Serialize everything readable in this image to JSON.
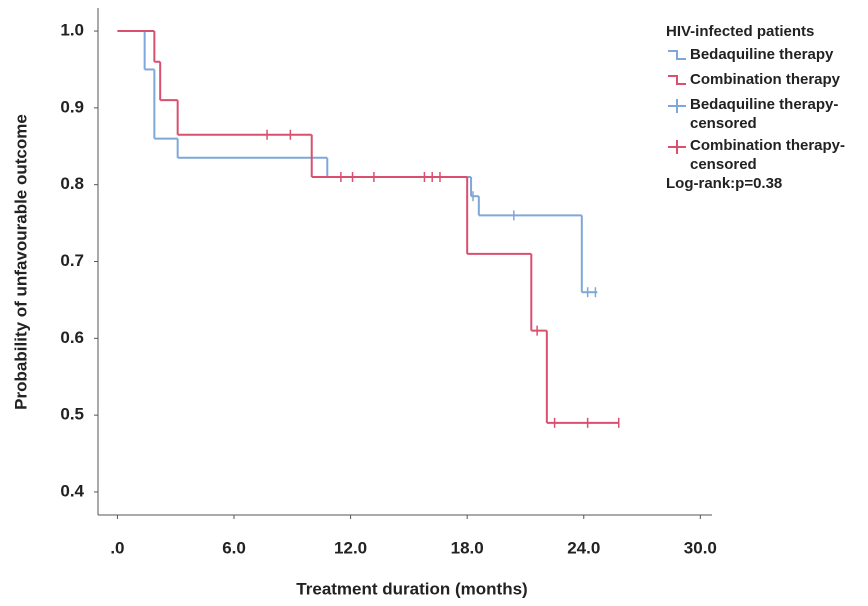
{
  "chart_data": {
    "type": "step",
    "x_label": "Treatment duration (months)",
    "y_label": "Probability of unfavourable outcome",
    "legend_title": "HIV-infected patients",
    "annotation": "Log-rank:p=0.38",
    "xlim": [
      -1,
      30.6
    ],
    "ylim": [
      0.37,
      1.03
    ],
    "xticks": [
      {
        "value": 0,
        "label": ".0"
      },
      {
        "value": 6,
        "label": "6.0"
      },
      {
        "value": 12,
        "label": "12.0"
      },
      {
        "value": 18,
        "label": "18.0"
      },
      {
        "value": 24,
        "label": "24.0"
      },
      {
        "value": 30,
        "label": "30.0"
      }
    ],
    "yticks": [
      0.4,
      0.5,
      0.6,
      0.7,
      0.8,
      0.9,
      {
        "value": 1.0,
        "label": "1.0"
      }
    ],
    "series": [
      {
        "name": "Bedaquiline therapy",
        "color": "#7fa7d9",
        "kind": "step",
        "x": [
          0,
          1.4,
          1.9,
          3.1,
          10.8,
          18.2,
          18.6,
          23.9,
          24.7
        ],
        "values": [
          1.0,
          0.95,
          0.86,
          0.835,
          0.81,
          0.785,
          0.76,
          0.66,
          0.66
        ]
      },
      {
        "name": "Combination therapy",
        "color": "#d9506e",
        "kind": "step",
        "x": [
          0,
          1.9,
          2.2,
          3.1,
          10.0,
          18.0,
          21.3,
          22.1,
          25.8
        ],
        "values": [
          1.0,
          0.96,
          0.91,
          0.865,
          0.81,
          0.71,
          0.61,
          0.49,
          0.49
        ]
      },
      {
        "name": "Bedaquiline therapy-censored",
        "color": "#7fa7d9",
        "kind": "censored",
        "x": [
          18.3,
          20.4,
          24.2,
          24.6
        ],
        "values": [
          0.785,
          0.76,
          0.66,
          0.66
        ]
      },
      {
        "name": "Combination therapy-censored",
        "color": "#d9506e",
        "kind": "censored",
        "x": [
          7.7,
          8.9,
          11.5,
          12.1,
          13.2,
          15.8,
          16.2,
          16.6,
          21.6,
          22.5,
          24.2,
          25.8
        ],
        "values": [
          0.865,
          0.865,
          0.81,
          0.81,
          0.81,
          0.81,
          0.81,
          0.81,
          0.61,
          0.49,
          0.49,
          0.49
        ]
      }
    ]
  }
}
